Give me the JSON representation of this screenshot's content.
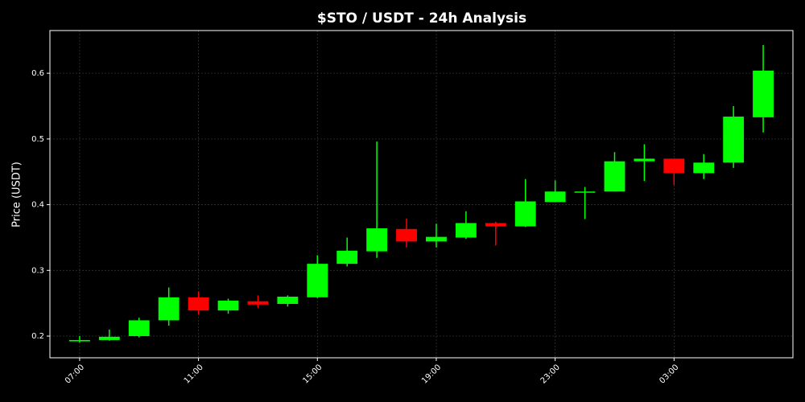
{
  "chart_data": {
    "type": "candlestick",
    "title": "$STO / USDT - 24h Analysis",
    "y_label": "Price (USDT)",
    "categories": [
      "07:00",
      null,
      null,
      null,
      "11:00",
      null,
      null,
      null,
      "15:00",
      null,
      null,
      null,
      "19:00",
      null,
      null,
      null,
      "23:00",
      null,
      null,
      null,
      "03:00",
      null,
      null,
      null
    ],
    "open": [
      0.192,
      0.194,
      0.2,
      0.224,
      0.259,
      0.239,
      0.253,
      0.249,
      0.259,
      0.31,
      0.329,
      0.363,
      0.344,
      0.35,
      0.372,
      0.367,
      0.404,
      0.419,
      0.42,
      0.466,
      0.47,
      0.448,
      0.464,
      0.533
    ],
    "high": [
      0.2,
      0.21,
      0.228,
      0.274,
      0.268,
      0.257,
      0.262,
      0.262,
      0.323,
      0.35,
      0.496,
      0.379,
      0.371,
      0.39,
      0.374,
      0.439,
      0.437,
      0.427,
      0.48,
      0.492,
      0.47,
      0.477,
      0.55,
      0.643
    ],
    "low": [
      0.19,
      0.193,
      0.198,
      0.216,
      0.233,
      0.234,
      0.243,
      0.245,
      0.258,
      0.306,
      0.319,
      0.335,
      0.335,
      0.348,
      0.338,
      0.366,
      0.404,
      0.378,
      0.42,
      0.436,
      0.43,
      0.439,
      0.456,
      0.51
    ],
    "close": [
      0.194,
      0.199,
      0.224,
      0.259,
      0.239,
      0.254,
      0.248,
      0.26,
      0.31,
      0.33,
      0.364,
      0.344,
      0.351,
      0.372,
      0.367,
      0.405,
      0.42,
      0.42,
      0.466,
      0.47,
      0.448,
      0.464,
      0.534,
      0.604
    ],
    "up_color": "#00ff00",
    "down_color": "#ff0000",
    "ylim": [
      0.167,
      0.665
    ],
    "yticks": [
      0.2,
      0.3,
      0.4,
      0.5,
      0.6
    ],
    "grid": true
  }
}
